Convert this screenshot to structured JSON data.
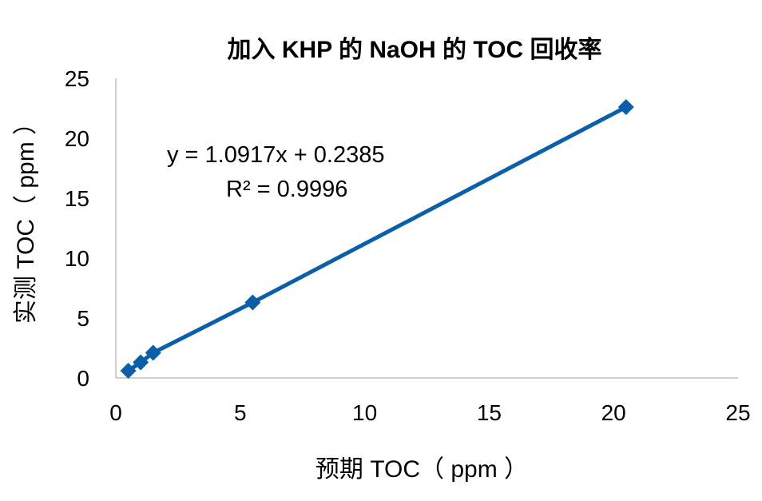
{
  "chart_data": {
    "type": "scatter",
    "title": "加入 KHP 的 NaOH 的 TOC 回收率",
    "xlabel": "预期 TOC（ ppm ）",
    "ylabel": "实测 TOC（ ppm ）",
    "xlim": [
      0,
      25
    ],
    "ylim": [
      0,
      25
    ],
    "xticks": [
      "0",
      "5",
      "10",
      "15",
      "20",
      "25"
    ],
    "yticks": [
      "0",
      "5",
      "10",
      "15",
      "20",
      "25"
    ],
    "series": [
      {
        "points": [
          {
            "x": 0.5,
            "y": 0.6
          },
          {
            "x": 1.0,
            "y": 1.3
          },
          {
            "x": 1.5,
            "y": 2.1
          },
          {
            "x": 5.5,
            "y": 6.3
          },
          {
            "x": 20.5,
            "y": 22.6
          }
        ],
        "color": "#0b5ea8",
        "marker": "diamond",
        "connected": true
      }
    ],
    "trendline": {
      "equation": "y = 1.0917x + 0.2385",
      "r_squared": "R² = 0.9996"
    },
    "grid": false,
    "legend": "none"
  }
}
